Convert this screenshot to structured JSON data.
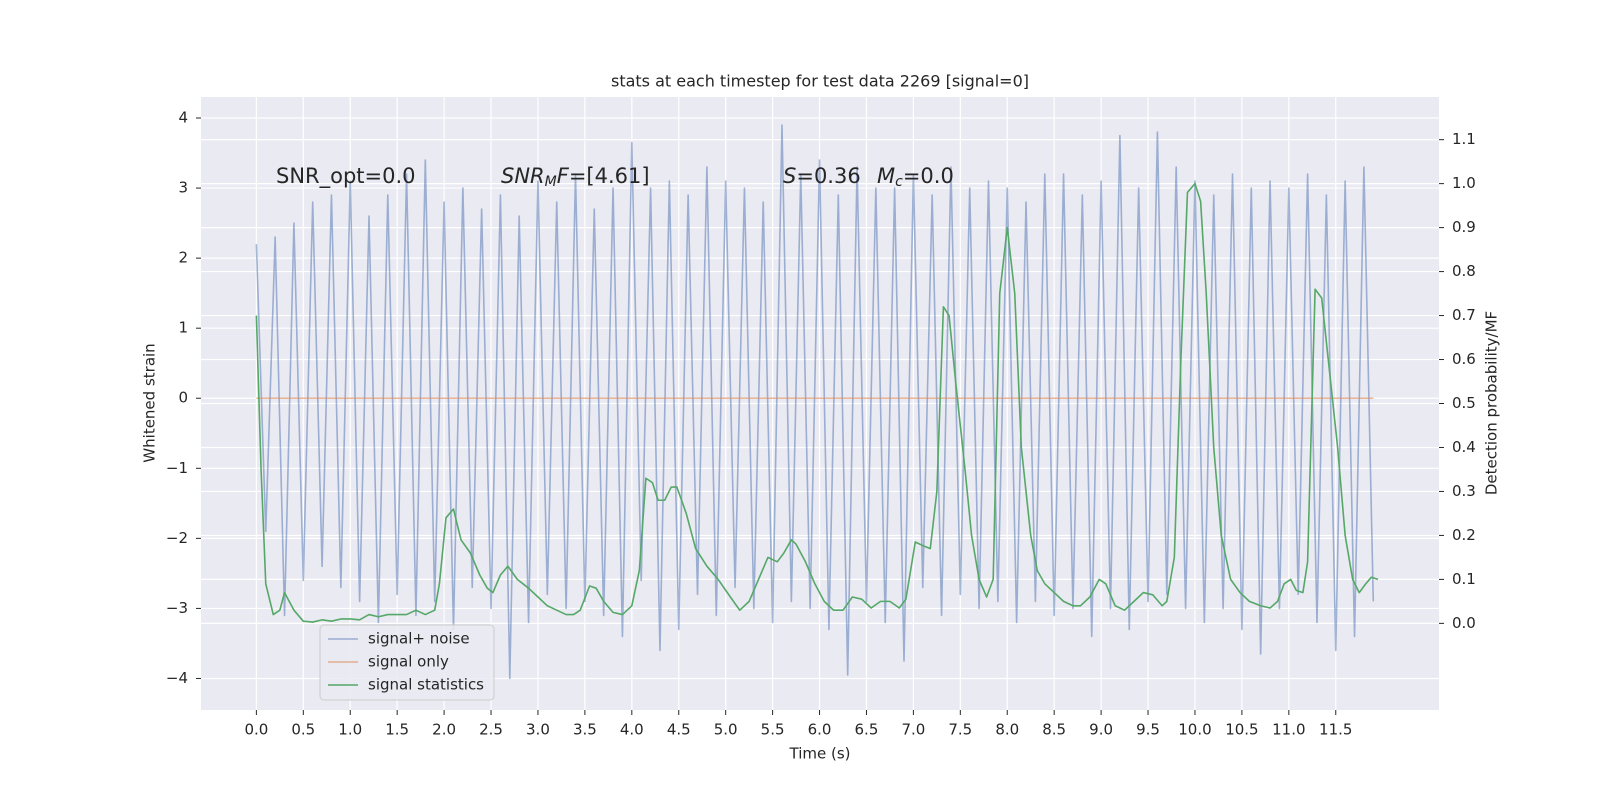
{
  "chart_data": {
    "type": "line",
    "title": "stats at each timestep for test data 2269 [signal=0]",
    "xlabel": "Time (s)",
    "ylabel": "Whitened strain",
    "y2label": "Detection probability/MF",
    "xlim": [
      -0.59,
      12.6
    ],
    "ylim": [
      -4.45,
      4.3
    ],
    "y2lim": [
      -0.197,
      1.197
    ],
    "grid": true,
    "legend": "lower left",
    "xticks": [
      {
        "value": 0,
        "label": "0.0"
      },
      {
        "value": 0.5,
        "label": "0.5"
      },
      {
        "value": 1,
        "label": "1.0"
      },
      {
        "value": 1.5,
        "label": "1.5"
      },
      {
        "value": 2,
        "label": "2.0"
      },
      {
        "value": 2.5,
        "label": "2.5"
      },
      {
        "value": 3,
        "label": "3.0"
      },
      {
        "value": 3.5,
        "label": "3.5"
      },
      {
        "value": 4,
        "label": "4.0"
      },
      {
        "value": 4.5,
        "label": "4.5"
      },
      {
        "value": 5,
        "label": "5.0"
      },
      {
        "value": 5.5,
        "label": "5.5"
      },
      {
        "value": 6,
        "label": "6.0"
      },
      {
        "value": 6.5,
        "label": "6.5"
      },
      {
        "value": 7,
        "label": "7.0"
      },
      {
        "value": 7.5,
        "label": "7.5"
      },
      {
        "value": 8,
        "label": "8.0"
      },
      {
        "value": 8.5,
        "label": "8.5"
      },
      {
        "value": 9,
        "label": "9.0"
      },
      {
        "value": 9.5,
        "label": "9.5"
      },
      {
        "value": 10,
        "label": "10.0"
      },
      {
        "value": 10.5,
        "label": "10.5"
      },
      {
        "value": 11,
        "label": "11.0"
      },
      {
        "value": 11.5,
        "label": "11.5"
      }
    ],
    "yticks": [
      4,
      3,
      2,
      1,
      0,
      {
        "value": -1,
        "label": "−1"
      },
      {
        "value": -2,
        "label": "−2"
      },
      {
        "value": -3,
        "label": "−3"
      },
      {
        "value": -4,
        "label": "−4"
      }
    ],
    "y2ticks": [
      {
        "value": 0,
        "label": "0.0"
      },
      0.1,
      0.2,
      0.3,
      0.4,
      0.5,
      0.6,
      0.7,
      0.8,
      0.9,
      {
        "value": 1,
        "label": "1.0"
      },
      1.1
    ],
    "annotations": [
      {
        "parts": [
          {
            "text": "SNR_opt=0.0"
          }
        ]
      },
      {
        "parts": [
          {
            "text": "SNR",
            "style": "italic"
          },
          {
            "text": "M",
            "style": "italic-sub"
          },
          {
            "text": "F",
            "style": "italic"
          },
          {
            "text": "=[4.61]"
          }
        ]
      },
      {
        "parts": [
          {
            "text": "S",
            "style": "italic"
          },
          {
            "text": "=0.36"
          }
        ]
      },
      {
        "parts": [
          {
            "text": "M",
            "style": "italic"
          },
          {
            "text": "c",
            "style": "italic-sub"
          },
          {
            "text": "=0.0"
          }
        ]
      }
    ],
    "series": [
      {
        "name": "signal+ noise",
        "color": "#4c72b0",
        "opacity": 0.5,
        "x": [
          0,
          0.1,
          0.2,
          0.3,
          0.4,
          0.5,
          0.6,
          0.7,
          0.8,
          0.9,
          1,
          1.1,
          1.2,
          1.3,
          1.4,
          1.5,
          1.6,
          1.7,
          1.8,
          1.9,
          2,
          2.1,
          2.2,
          2.3,
          2.4,
          2.5,
          2.6,
          2.7,
          2.8,
          2.9,
          3,
          3.1,
          3.2,
          3.3,
          3.4,
          3.5,
          3.6,
          3.7,
          3.8,
          3.9,
          4,
          4.1,
          4.2,
          4.3,
          4.4,
          4.5,
          4.6,
          4.7,
          4.8,
          4.9,
          5,
          5.1,
          5.2,
          5.3,
          5.4,
          5.5,
          5.6,
          5.7,
          5.8,
          5.9,
          6,
          6.1,
          6.2,
          6.3,
          6.4,
          6.5,
          6.6,
          6.7,
          6.8,
          6.9,
          7,
          7.1,
          7.2,
          7.3,
          7.4,
          7.5,
          7.6,
          7.7,
          7.8,
          7.9,
          8,
          8.1,
          8.2,
          8.3,
          8.4,
          8.5,
          8.6,
          8.7,
          8.8,
          8.9,
          9,
          9.1,
          9.2,
          9.3,
          9.4,
          9.5,
          9.6,
          9.7,
          9.8,
          9.9,
          10,
          10.1,
          10.2,
          10.3,
          10.4,
          10.5,
          10.6,
          10.7,
          10.8,
          10.9,
          11,
          11.1,
          11.2,
          11.3,
          11.4,
          11.5,
          11.6,
          11.7,
          11.8,
          11.9
        ],
        "values": [
          2.2,
          -1.9,
          2.3,
          -3.1,
          2.5,
          -2.6,
          2.8,
          -2.4,
          2.9,
          -2.7,
          3.1,
          -2.9,
          2.6,
          -3.2,
          2.9,
          -2.8,
          3.2,
          -3.1,
          3.4,
          -2.9,
          2.8,
          -3.3,
          3.0,
          -2.7,
          2.7,
          -3.0,
          2.9,
          -4.0,
          2.6,
          -3.2,
          3.1,
          -2.8,
          2.8,
          -3.0,
          3.2,
          -2.9,
          2.7,
          -3.1,
          3.0,
          -3.4,
          3.65,
          -2.6,
          3.0,
          -3.6,
          3.1,
          -3.3,
          2.9,
          -2.8,
          3.3,
          -3.1,
          3.1,
          -2.7,
          3.0,
          -3.0,
          2.8,
          -3.2,
          3.9,
          -2.9,
          3.2,
          -3.0,
          3.4,
          -3.3,
          2.9,
          -3.95,
          3.3,
          -2.9,
          3.0,
          -3.2,
          3.0,
          -3.75,
          3.2,
          -2.7,
          2.9,
          -3.1,
          3.3,
          -2.8,
          3.0,
          -3.0,
          3.1,
          -2.9,
          3.0,
          -3.2,
          2.8,
          -2.9,
          3.2,
          -3.1,
          3.2,
          -3.0,
          2.9,
          -3.4,
          3.1,
          -3.0,
          3.75,
          -3.3,
          3.0,
          -2.9,
          3.8,
          -2.8,
          3.3,
          -3.0,
          3.1,
          -3.2,
          2.9,
          -3.0,
          3.2,
          -3.3,
          3.0,
          -3.65,
          3.1,
          -3.0,
          3.0,
          -2.8,
          3.2,
          -3.2,
          2.9,
          -3.6,
          3.1,
          -3.4,
          3.3,
          -2.9
        ]
      },
      {
        "name": "signal only",
        "color": "#dd8452",
        "opacity": 0.6,
        "x": [
          0,
          11.9
        ],
        "values": [
          0,
          0
        ]
      },
      {
        "name": "signal statistics",
        "color": "#55a868",
        "opacity": 1,
        "axis": "y2",
        "x": [
          0,
          0.05,
          0.1,
          0.18,
          0.25,
          0.3,
          0.4,
          0.5,
          0.6,
          0.7,
          0.8,
          0.9,
          1,
          1.1,
          1.2,
          1.3,
          1.4,
          1.5,
          1.6,
          1.7,
          1.8,
          1.9,
          1.95,
          2.02,
          2.1,
          2.18,
          2.28,
          2.38,
          2.46,
          2.52,
          2.6,
          2.68,
          2.78,
          2.9,
          3,
          3.1,
          3.2,
          3.3,
          3.38,
          3.45,
          3.55,
          3.62,
          3.7,
          3.8,
          3.9,
          4,
          4.08,
          4.15,
          4.22,
          4.28,
          4.35,
          4.42,
          4.48,
          4.58,
          4.68,
          4.8,
          4.92,
          5.05,
          5.15,
          5.25,
          5.35,
          5.45,
          5.55,
          5.62,
          5.7,
          5.75,
          5.85,
          5.95,
          6.05,
          6.15,
          6.25,
          6.35,
          6.45,
          6.55,
          6.65,
          6.75,
          6.85,
          6.92,
          7.02,
          7.12,
          7.18,
          7.25,
          7.32,
          7.38,
          7.45,
          7.55,
          7.62,
          7.7,
          7.78,
          7.85,
          7.92,
          8,
          8.08,
          8.15,
          8.25,
          8.32,
          8.4,
          8.5,
          8.6,
          8.7,
          8.78,
          8.88,
          8.98,
          9.05,
          9.15,
          9.25,
          9.35,
          9.45,
          9.55,
          9.65,
          9.7,
          9.78,
          9.85,
          9.92,
          10,
          10.06,
          10.12,
          10.2,
          10.28,
          10.38,
          10.48,
          10.58,
          10.7,
          10.8,
          10.88,
          10.95,
          11.02,
          11.08,
          11.15,
          11.2,
          11.28,
          11.35,
          11.42,
          11.52,
          11.6,
          11.68,
          11.75,
          11.82,
          11.88,
          11.95
        ],
        "values": [
          0.7,
          0.35,
          0.09,
          0.02,
          0.03,
          0.07,
          0.03,
          0.005,
          0.003,
          0.008,
          0.005,
          0.01,
          0.01,
          0.008,
          0.02,
          0.015,
          0.02,
          0.02,
          0.02,
          0.03,
          0.02,
          0.03,
          0.09,
          0.24,
          0.26,
          0.19,
          0.16,
          0.11,
          0.08,
          0.07,
          0.11,
          0.13,
          0.1,
          0.08,
          0.06,
          0.04,
          0.03,
          0.02,
          0.02,
          0.03,
          0.085,
          0.08,
          0.05,
          0.025,
          0.02,
          0.04,
          0.12,
          0.33,
          0.32,
          0.28,
          0.28,
          0.31,
          0.31,
          0.25,
          0.17,
          0.13,
          0.1,
          0.06,
          0.03,
          0.05,
          0.1,
          0.15,
          0.14,
          0.16,
          0.19,
          0.18,
          0.14,
          0.09,
          0.05,
          0.03,
          0.03,
          0.06,
          0.055,
          0.035,
          0.05,
          0.05,
          0.035,
          0.055,
          0.185,
          0.175,
          0.17,
          0.3,
          0.72,
          0.7,
          0.55,
          0.35,
          0.2,
          0.1,
          0.06,
          0.1,
          0.75,
          0.9,
          0.75,
          0.4,
          0.2,
          0.12,
          0.09,
          0.07,
          0.05,
          0.04,
          0.04,
          0.06,
          0.1,
          0.09,
          0.04,
          0.03,
          0.05,
          0.07,
          0.065,
          0.04,
          0.05,
          0.15,
          0.6,
          0.98,
          1.0,
          0.96,
          0.75,
          0.4,
          0.2,
          0.1,
          0.07,
          0.05,
          0.04,
          0.035,
          0.05,
          0.09,
          0.1,
          0.075,
          0.07,
          0.14,
          0.76,
          0.74,
          0.6,
          0.4,
          0.2,
          0.1,
          0.07,
          0.09,
          0.105,
          0.1
        ]
      }
    ]
  }
}
